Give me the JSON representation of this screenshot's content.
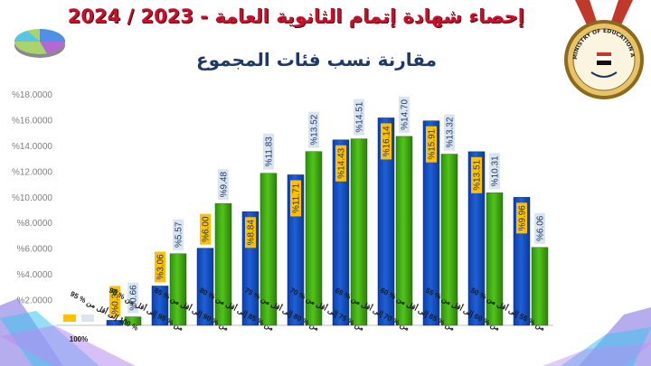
{
  "header": {
    "title": "إحصاء شهادة إتمام الثانوية العامة - 2023 / 2024",
    "subtitle": "مقارنة نسب فئات المجموع"
  },
  "seal": {
    "text": "MINISTRY OF EDUCATION AND TECHNICAL EDUCATION"
  },
  "colors": {
    "series_2023": "#1f5fd6",
    "series_2024": "#52c41a",
    "label_2023_box": "#ffc000",
    "label_2024_box": "#dbe5f1",
    "title_red": "#c8102e",
    "subtitle_navy": "#1f3864"
  },
  "chart_data": {
    "type": "bar",
    "categories": [
      "100%",
      "% 100 إلى أقل من % 95",
      "من % 95 إلى أقل من % 90",
      "من % 90 إلى أقل من % 85",
      "من % 85 إلى أقل من % 80",
      "من % 80 إلى أقل من % 75",
      "من % 75 إلى أقل من % 70",
      "من % 70 إلى أقل من % 65",
      "من % 65 إلى أقل من % 60",
      "من % 60 إلى أقل من % 55",
      "من % 55 إلى أقل من % 50"
    ],
    "series": [
      {
        "values": [
          0,
          0.39,
          3.06,
          6.0,
          8.84,
          11.71,
          14.43,
          16.14,
          15.91,
          13.51,
          9.96
        ],
        "labels": [
          "",
          "%0.39",
          "%3.06",
          "%6.00",
          "%8.84",
          "%11.71",
          "%14.43",
          "%16.14",
          "%15.91",
          "%13.51",
          "%9.96"
        ]
      },
      {
        "values": [
          0,
          0.66,
          5.57,
          9.48,
          11.83,
          13.52,
          14.51,
          14.7,
          13.32,
          10.31,
          6.06
        ],
        "labels": [
          "",
          "%0.66",
          "%5.57",
          "%9.48",
          "%11.83",
          "%13.52",
          "%14.51",
          "%14.70",
          "%13.32",
          "%10.31",
          "%6.06"
        ]
      }
    ],
    "yticks": [
      "%2.0000",
      "%4.0000",
      "%6.0000",
      "%8.0000",
      "%10.0000",
      "%12.0000",
      "%14.0000",
      "%16.0000",
      "%18.0000"
    ],
    "ylim": [
      0,
      18
    ],
    "grid": false,
    "title": "",
    "xlabel": "",
    "ylabel": ""
  }
}
